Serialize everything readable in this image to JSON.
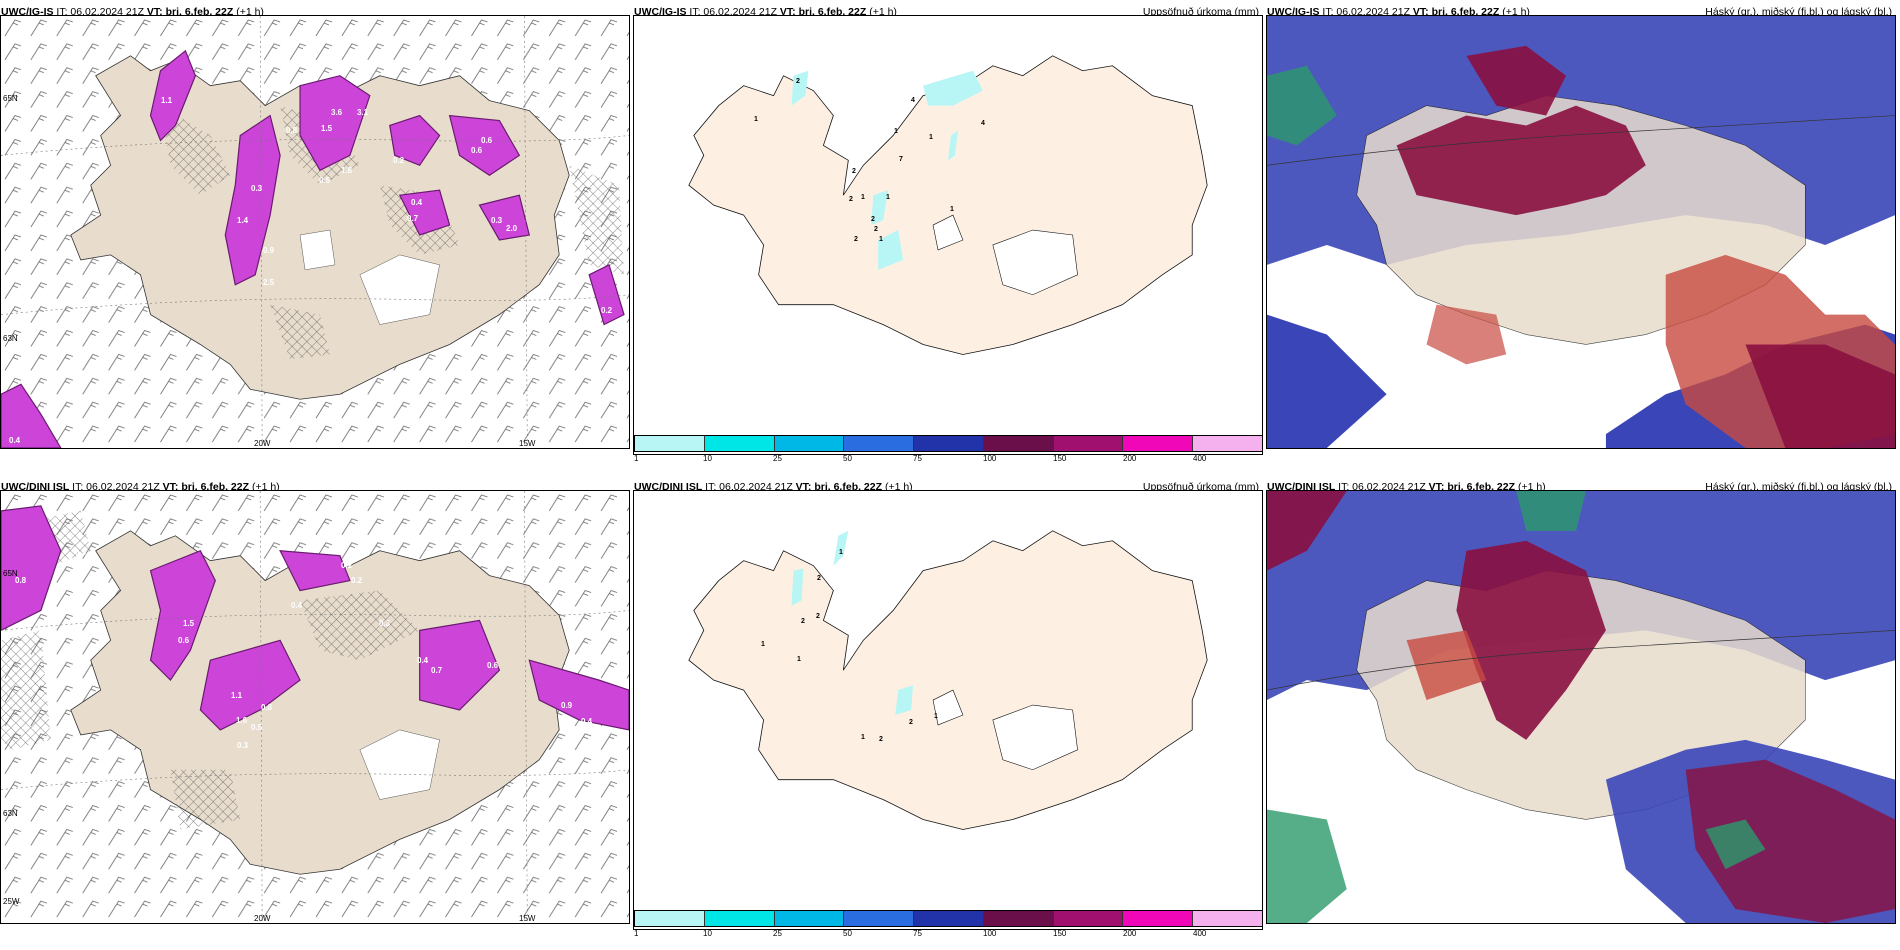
{
  "panels": [
    {
      "id": "top-left",
      "model": "UWC/IG-IS",
      "it": "IT: 06.02.2024 21Z",
      "vt_label": "VT:",
      "vt_value": "þri. 6.feb. 22Z",
      "offset": "(+1 h)",
      "right_title": "",
      "lon_labels": [
        "20W",
        "15W"
      ],
      "lat_labels": [
        "65N",
        "63N"
      ],
      "point_values": [
        "3.6",
        "3.1",
        "1.5",
        "0.9",
        "0.5",
        "1.8",
        "0.6",
        "0.7",
        "2.0",
        "0.3",
        "1.4",
        "0.2",
        "0.4",
        "0.8",
        "1.1",
        "2.5",
        "0.6",
        "0.3",
        "0.4",
        "0.2"
      ]
    },
    {
      "id": "top-middle",
      "model": "UWC/IG-IS",
      "it": "IT: 06.02.2024 21Z",
      "vt_label": "VT:",
      "vt_value": "þri. 6.feb. 22Z",
      "offset": "(+1 h)",
      "right_title": "Uppsöfnuð úrkoma (mm)",
      "point_values": [
        "2",
        "1",
        "4",
        "1",
        "2",
        "7",
        "2",
        "1",
        "2",
        "1",
        "1",
        "1",
        "2",
        "2",
        "1",
        "4"
      ]
    },
    {
      "id": "top-right",
      "model": "UWC/IG-IS",
      "it": "IT: 06.02.2024 21Z",
      "vt_label": "VT:",
      "vt_value": "þri. 6.feb. 22Z",
      "offset": "(+1 h)",
      "right_title": "Háský (gr.), miðský (fj.bl.) og lágský (bl.)"
    },
    {
      "id": "bottom-left",
      "model": "UWC/DINI ISL",
      "it": "IT: 06.02.2024 21Z",
      "vt_label": "VT:",
      "vt_value": "þri. 6.feb. 22Z",
      "offset": "(+1 h)",
      "right_title": "",
      "lon_labels": [
        "20W",
        "15W"
      ],
      "lat_labels": [
        "65N",
        "63N",
        "25W"
      ],
      "point_values": [
        "0.3",
        "0.8",
        "0.5",
        "1.5",
        "0.6",
        "0.8",
        "0.2",
        "0.3",
        "0.4",
        "0.7",
        "1.1",
        "1.6",
        "0.5",
        "0.3",
        "0.4",
        "0.2",
        "0.6",
        "0.9",
        "0.4"
      ]
    },
    {
      "id": "bottom-middle",
      "model": "UWC/DINI ISL",
      "it": "IT: 06.02.2024 21Z",
      "vt_label": "VT:",
      "vt_value": "þri. 6.feb. 22Z",
      "offset": "(+1 h)",
      "right_title": "Uppsöfnuð úrkoma (mm)",
      "point_values": [
        "1",
        "2",
        "2",
        "2",
        "1",
        "1",
        "1",
        "2",
        "2",
        "1"
      ]
    },
    {
      "id": "bottom-right",
      "model": "UWC/DINI ISL",
      "it": "IT: 06.02.2024 21Z",
      "vt_label": "VT:",
      "vt_value": "þri. 6.feb. 22Z",
      "offset": "(+1 h)",
      "right_title": "Háský (gr.), miðský (fj.bl.) og lágský (bl.)"
    }
  ],
  "colorbar": {
    "labels": [
      "1",
      "10",
      "25",
      "50",
      "75",
      "100",
      "150",
      "200",
      "400"
    ],
    "colors": [
      "#b8f5f5",
      "#00e5e5",
      "#00b8e6",
      "#2a6de0",
      "#2233aa",
      "#6a0f4a",
      "#a0106e",
      "#f008b8",
      "#f5b0ee"
    ]
  },
  "colors": {
    "land": "#e8dccc",
    "land_mid": "#fdf0e3",
    "precip_purple": "#cc44d8",
    "precip_dark": "#6a1a70",
    "high_cloud": "#2a9a6a",
    "mid_cloud": "#8a1040",
    "low_cloud": "#3a46b8"
  }
}
